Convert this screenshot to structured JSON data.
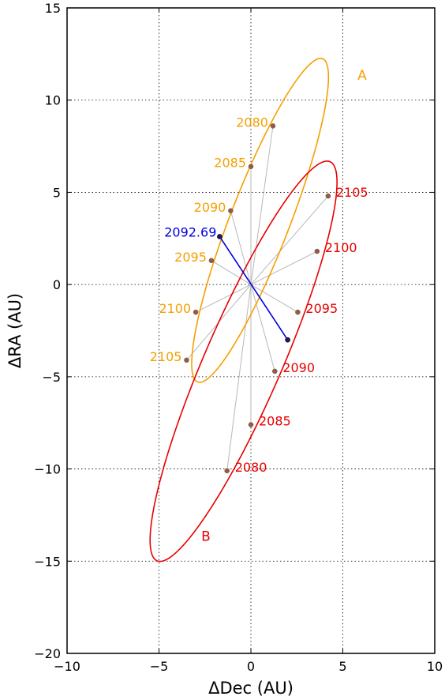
{
  "colors": {
    "A": "#f5a000",
    "B": "#e80000",
    "node": "#0000e0",
    "grid": "#000000",
    "ray": "#b8b8b8",
    "marker": "#9a5a3c"
  },
  "chart_data": {
    "type": "scatter",
    "xlabel": "ΔDec (AU)",
    "ylabel": "ΔRA (AU)",
    "xlim": [
      -10,
      10
    ],
    "ylim": [
      -20,
      15
    ],
    "xticks": [
      -10,
      -5,
      0,
      5,
      10
    ],
    "yticks": [
      -20,
      -15,
      -10,
      -5,
      0,
      5,
      10,
      15
    ],
    "xtick_labels": [
      "−10",
      "−5",
      "0",
      "5",
      "10"
    ],
    "ytick_labels": [
      "−20",
      "−15",
      "−10",
      "−5",
      "0",
      "5",
      "10",
      "15"
    ],
    "grid": true,
    "orbits": [
      {
        "name": "A",
        "label_pos": [
          5.8,
          11.1
        ],
        "ellipse": {
          "center": [
            0.5,
            3.48
          ],
          "semi_major": 9.4,
          "semi_minor": 1.62,
          "angle_deg": 68.8
        },
        "points": [
          {
            "label": "2080",
            "x": 1.2,
            "y": 8.6
          },
          {
            "label": "2085",
            "x": 0.0,
            "y": 6.4
          },
          {
            "label": "2090",
            "x": -1.1,
            "y": 4.0
          },
          {
            "label": "2095",
            "x": -2.15,
            "y": 1.3
          },
          {
            "label": "2100",
            "x": -3.0,
            "y": -1.5
          },
          {
            "label": "2105",
            "x": -3.5,
            "y": -4.1
          }
        ]
      },
      {
        "name": "B",
        "label_pos": [
          -2.7,
          -13.9
        ],
        "ellipse": {
          "center": [
            -0.4,
            -4.16
          ],
          "semi_major": 11.8,
          "semi_minor": 2.1,
          "angle_deg": 66.5
        },
        "points": [
          {
            "label": "2080",
            "x": -1.3,
            "y": -10.1
          },
          {
            "label": "2085",
            "x": 0.0,
            "y": -7.6
          },
          {
            "label": "2090",
            "x": 1.3,
            "y": -4.7
          },
          {
            "label": "2095",
            "x": 2.55,
            "y": -1.5
          },
          {
            "label": "2100",
            "x": 3.6,
            "y": 1.8
          },
          {
            "label": "2105",
            "x": 4.2,
            "y": 4.8
          }
        ]
      }
    ],
    "line_of_nodes": {
      "label": "2092.69",
      "start": [
        -1.7,
        2.6
      ],
      "end": [
        2.0,
        -3.0
      ]
    }
  }
}
